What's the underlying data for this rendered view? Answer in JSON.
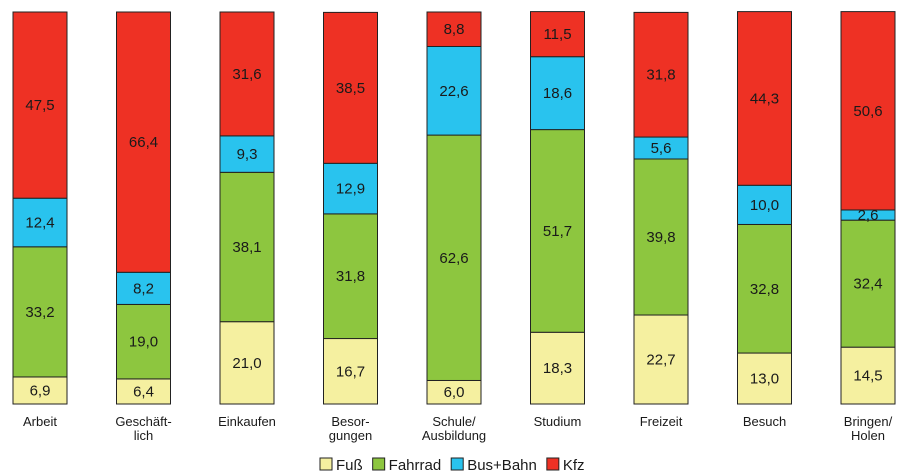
{
  "chart_data": {
    "type": "bar",
    "stacked": true,
    "title": "",
    "xlabel": "",
    "ylabel": "",
    "ylim": [
      0,
      100
    ],
    "grid": false,
    "legend_position": "bottom",
    "categories": [
      [
        "Arbeit"
      ],
      [
        "Geschäft-",
        "lich"
      ],
      [
        "Einkaufen"
      ],
      [
        "Besor-",
        "gungen"
      ],
      [
        "Schule/",
        "Ausbildung"
      ],
      [
        "Studium"
      ],
      [
        "Freizeit"
      ],
      [
        "Besuch"
      ],
      [
        "Bringen/",
        "Holen"
      ]
    ],
    "series": [
      {
        "name": "Fuß",
        "color": "#f5f0a0",
        "values": [
          6.9,
          6.4,
          21.0,
          16.7,
          6.0,
          18.3,
          22.7,
          13.0,
          14.5
        ],
        "labels": [
          "6,9",
          "6,4",
          "21,0",
          "16,7",
          "6,0",
          "18,3",
          "22,7",
          "13,0",
          "14,5"
        ]
      },
      {
        "name": "Fahrrad",
        "color": "#8dc63f",
        "values": [
          33.2,
          19.0,
          38.1,
          31.8,
          62.6,
          51.7,
          39.8,
          32.8,
          32.4
        ],
        "labels": [
          "33,2",
          "19,0",
          "38,1",
          "31,8",
          "62,6",
          "51,7",
          "39,8",
          "32,8",
          "32,4"
        ]
      },
      {
        "name": "Bus+Bahn",
        "color": "#29c3ee",
        "values": [
          12.4,
          8.2,
          9.3,
          12.9,
          22.6,
          18.6,
          5.6,
          10.0,
          2.6
        ],
        "labels": [
          "12,4",
          "8,2",
          "9,3",
          "12,9",
          "22,6",
          "18,6",
          "5,6",
          "10,0",
          "2,6"
        ]
      },
      {
        "name": "Kfz",
        "color": "#ee3124",
        "values": [
          47.5,
          66.4,
          31.6,
          38.5,
          8.8,
          11.5,
          31.8,
          44.3,
          50.6
        ],
        "labels": [
          "47,5",
          "66,4",
          "31,6",
          "38,5",
          "8,8",
          "11,5",
          "31,8",
          "44,3",
          "50,6"
        ]
      }
    ]
  }
}
